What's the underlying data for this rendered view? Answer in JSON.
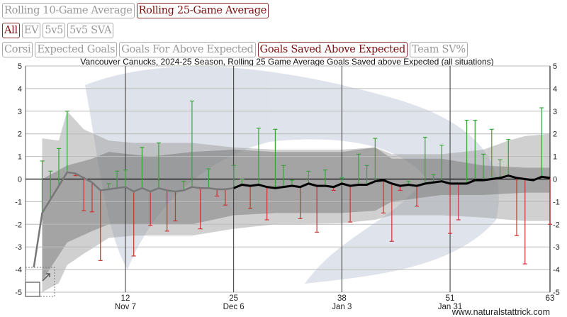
{
  "window_buttons": [
    {
      "label": "Rolling 10-Game Average",
      "active": false
    },
    {
      "label": "Rolling 25-Game Average",
      "active": true
    }
  ],
  "situation_buttons": [
    {
      "label": "All",
      "active": true
    },
    {
      "label": "EV",
      "active": false
    },
    {
      "label": "5v5",
      "active": false
    },
    {
      "label": "5v5 SVA",
      "active": false
    }
  ],
  "metric_buttons": [
    {
      "label": "Corsi",
      "active": false
    },
    {
      "label": "Expected Goals",
      "active": false
    },
    {
      "label": "Goals For Above Expected",
      "active": false
    },
    {
      "label": "Goals Saved Above Expected",
      "active": true
    },
    {
      "label": "Team SV%",
      "active": false
    }
  ],
  "colors": {
    "active": "#7a1010",
    "up": "#3aa33a",
    "down": "#cc3333",
    "avg_partial": "#777777",
    "avg_full": "#000000"
  },
  "chart_data": {
    "type": "line",
    "title": "Vancouver Canucks, 2024-25 Season, Rolling 25 Game Average Goals Saved above Expected (all situations)",
    "ylim": [
      -5,
      5
    ],
    "xlim": [
      0,
      63
    ],
    "yticks": [
      5,
      4,
      3,
      2,
      1,
      0,
      -1,
      -2,
      -3,
      -4,
      -5
    ],
    "xticks": [
      {
        "game": 12,
        "label": "12",
        "date": "Nov 7"
      },
      {
        "game": 25,
        "label": "25",
        "date": "Dec 6"
      },
      {
        "game": 38,
        "label": "38",
        "date": "Jan 3"
      },
      {
        "game": 51,
        "label": "51",
        "date": "Jan 31"
      },
      {
        "game": 63,
        "label": "63",
        "date": ""
      }
    ],
    "rolling_window": 25,
    "game_values": [
      null,
      0.8,
      0.35,
      1.35,
      3.0,
      0.15,
      -1.4,
      -1.45,
      -3.6,
      -0.2,
      0.35,
      0.4,
      -3.4,
      1.4,
      -2.05,
      1.6,
      -2.3,
      -1.85,
      -0.1,
      3.45,
      -2.2,
      0.45,
      -0.75,
      -1.15,
      0.6,
      0.0,
      -1.3,
      2.25,
      -1.8,
      2.2,
      0.6,
      -0.05,
      -1.75,
      0.35,
      -2.35,
      0.4,
      -0.5,
      0.05,
      -1.9,
      1.1,
      0.6,
      1.8,
      -1.5,
      -2.75,
      -0.5,
      -0.1,
      -1.2,
      1.85,
      0.2,
      1.5,
      -2.4,
      -1.8,
      2.6,
      2.6,
      1.1,
      2.2,
      0.85,
      1.75,
      -2.5,
      -3.75,
      -0.05,
      3.15,
      -2.0
    ],
    "rolling_avg": [
      -3.9,
      -1.5,
      -0.9,
      -0.3,
      0.3,
      0.25,
      0.05,
      -0.15,
      -0.5,
      -0.45,
      -0.4,
      -0.35,
      -0.55,
      -0.4,
      -0.55,
      -0.4,
      -0.5,
      -0.55,
      -0.5,
      -0.35,
      -0.4,
      -0.4,
      -0.45,
      -0.45,
      -0.4,
      -0.25,
      -0.3,
      -0.25,
      -0.35,
      -0.4,
      -0.35,
      -0.3,
      -0.35,
      -0.2,
      -0.3,
      -0.3,
      -0.35,
      -0.2,
      -0.3,
      -0.25,
      -0.25,
      -0.1,
      -0.05,
      -0.2,
      -0.3,
      -0.25,
      -0.3,
      -0.2,
      -0.15,
      -0.1,
      -0.2,
      -0.2,
      -0.2,
      -0.05,
      -0.05,
      0.0,
      0.05,
      0.15,
      0.05,
      0.0,
      -0.05,
      0.1,
      0.05
    ],
    "band_outer": {
      "games": [
        2,
        4,
        5,
        7,
        10,
        13,
        20,
        25,
        30,
        38,
        42,
        44,
        50,
        55,
        58,
        60,
        63
      ],
      "upper": [
        1.8,
        1.7,
        3.0,
        2.2,
        1.7,
        1.6,
        1.6,
        1.4,
        1.3,
        1.3,
        1.4,
        1.1,
        1.1,
        1.3,
        1.7,
        1.9,
        2.0
      ],
      "lower": [
        -5.0,
        -4.6,
        -3.8,
        -3.3,
        -2.6,
        -2.5,
        -2.5,
        -2.2,
        -2.0,
        -1.95,
        -1.8,
        -1.6,
        -1.6,
        -1.7,
        -1.8,
        -1.85,
        -1.85
      ]
    },
    "band_inner": {
      "games": [
        2,
        5,
        8,
        10,
        15,
        20,
        25,
        30,
        38,
        42,
        44,
        50,
        55,
        60,
        63
      ],
      "upper": [
        0.0,
        0.6,
        0.9,
        1.2,
        1.0,
        1.2,
        1.3,
        1.2,
        1.2,
        1.4,
        0.9,
        0.9,
        0.6,
        0.5,
        0.5
      ],
      "lower": [
        -4.5,
        -2.8,
        -2.3,
        -2.0,
        -2.0,
        -2.0,
        -1.6,
        -1.5,
        -1.5,
        -1.4,
        -1.0,
        -0.7,
        -0.7,
        -0.6,
        -0.6
      ]
    }
  },
  "footer": "www.naturalstattrick.com"
}
